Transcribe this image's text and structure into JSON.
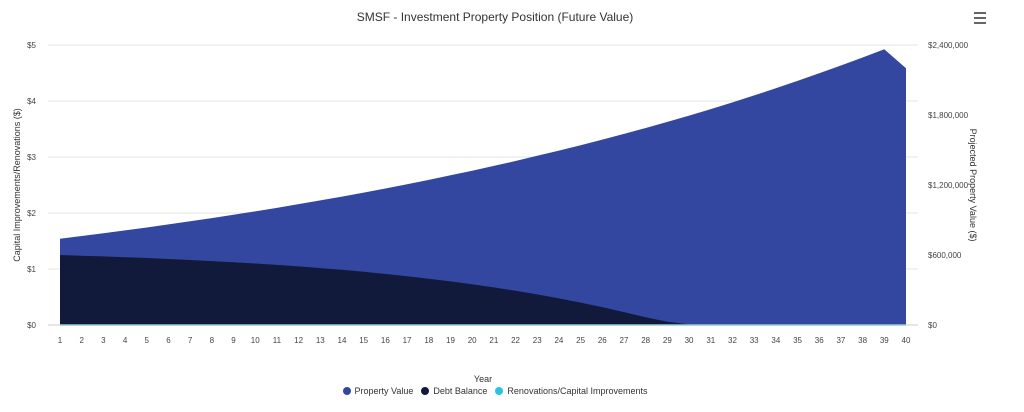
{
  "chart_data": {
    "type": "area",
    "title": "SMSF - Investment Property Position (Future Value)",
    "xlabel": "Year",
    "ylabel_left": "Capital Improvements/Renovations ($)",
    "ylabel_right": "Projected Property Value ($)",
    "categories": [
      "1",
      "2",
      "3",
      "4",
      "5",
      "6",
      "7",
      "8",
      "9",
      "10",
      "11",
      "12",
      "13",
      "14",
      "15",
      "16",
      "17",
      "18",
      "19",
      "20",
      "21",
      "22",
      "23",
      "24",
      "25",
      "26",
      "27",
      "28",
      "29",
      "30",
      "31",
      "32",
      "33",
      "34",
      "35",
      "36",
      "37",
      "38",
      "39",
      "40"
    ],
    "left_axis": {
      "min": 0,
      "max": 5,
      "ticks": [
        "$0",
        "$1",
        "$2",
        "$3",
        "$4",
        "$5"
      ]
    },
    "right_axis": {
      "min": 0,
      "max": 2400000,
      "ticks": [
        "$0",
        "$600,000",
        "$1,200,000",
        "$1,800,000",
        "$2,400,000"
      ]
    },
    "series": [
      {
        "name": "Property Value",
        "axis": "right",
        "color": "#3347a1",
        "values": [
          740000,
          763000,
          787000,
          811000,
          836000,
          862000,
          889000,
          916000,
          945000,
          974000,
          1004000,
          1036000,
          1068000,
          1101000,
          1135000,
          1170000,
          1207000,
          1244000,
          1283000,
          1323000,
          1364000,
          1406000,
          1450000,
          1495000,
          1541000,
          1589000,
          1638000,
          1689000,
          1741000,
          1795000,
          1851000,
          1908000,
          1968000,
          2029000,
          2092000,
          2157000,
          2224000,
          2293000,
          2364000,
          2200000
        ]
      },
      {
        "name": "Debt Balance",
        "axis": "right",
        "color": "#111a3b",
        "values": [
          600000,
          594000,
          588000,
          581000,
          574000,
          566000,
          557000,
          548000,
          538000,
          527000,
          515000,
          502000,
          488000,
          473000,
          456000,
          438000,
          418000,
          397000,
          374000,
          349000,
          322000,
          293000,
          262000,
          228000,
          192000,
          153000,
          111000,
          66000,
          28000,
          5000,
          0,
          0,
          0,
          0,
          0,
          0,
          0,
          0,
          0,
          0
        ]
      },
      {
        "name": "Renovations/Capital Improvements",
        "axis": "left",
        "color": "#29c5e0",
        "values": [
          0,
          0,
          0,
          0,
          0,
          0,
          0,
          0,
          0,
          0,
          0,
          0,
          0,
          0,
          0,
          0,
          0,
          0,
          0,
          0,
          0,
          0,
          0,
          0,
          0,
          0,
          0,
          0,
          0,
          0,
          0,
          0,
          0,
          0,
          0,
          0,
          0,
          0,
          0,
          0
        ]
      }
    ],
    "legend_position": "bottom",
    "grid": true
  },
  "menu_icon": "hamburger-menu-icon"
}
